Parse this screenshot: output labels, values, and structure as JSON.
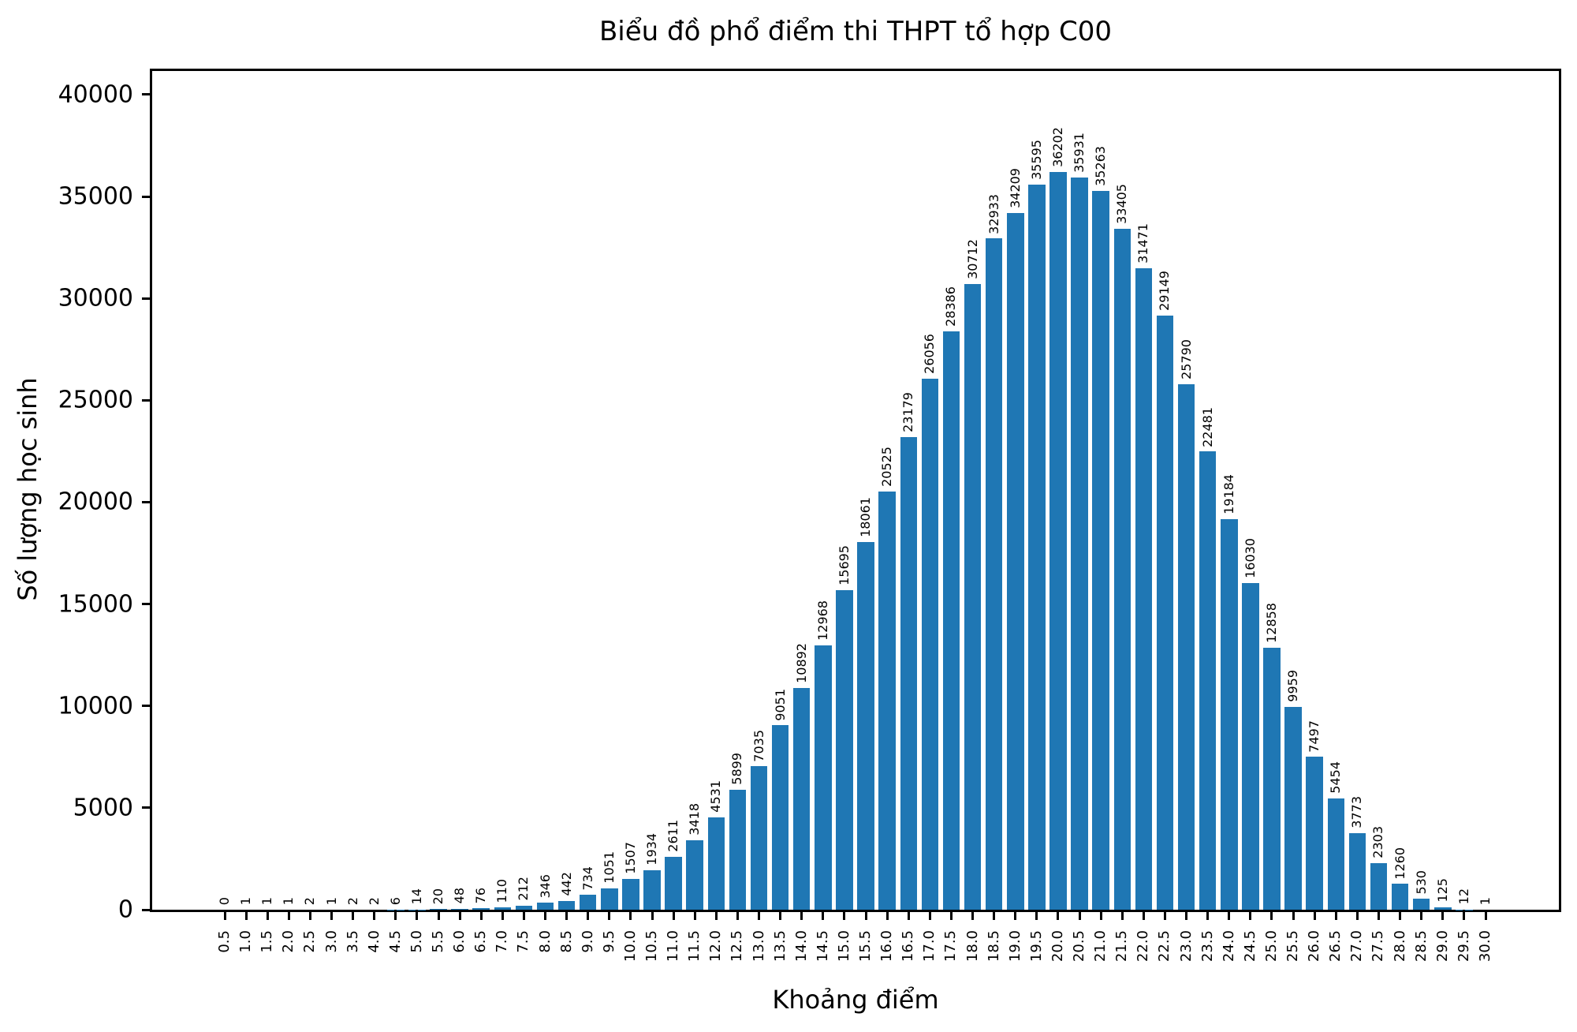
{
  "chart_data": {
    "type": "bar",
    "title": "Biểu đồ phổ điểm thi THPT tổ hợp C00",
    "xlabel": "Khoảng điểm",
    "ylabel": "Số lượng học sinh",
    "categories": [
      "0.5",
      "1.0",
      "1.5",
      "2.0",
      "2.5",
      "3.0",
      "3.5",
      "4.0",
      "4.5",
      "5.0",
      "5.5",
      "6.0",
      "6.5",
      "7.0",
      "7.5",
      "8.0",
      "8.5",
      "9.0",
      "9.5",
      "10.0",
      "10.5",
      "11.0",
      "11.5",
      "12.0",
      "12.5",
      "13.0",
      "13.5",
      "14.0",
      "14.5",
      "15.0",
      "15.5",
      "16.0",
      "16.5",
      "17.0",
      "17.5",
      "18.0",
      "18.5",
      "19.0",
      "19.5",
      "20.0",
      "20.5",
      "21.0",
      "21.5",
      "22.0",
      "22.5",
      "23.0",
      "23.5",
      "24.0",
      "24.5",
      "25.0",
      "25.5",
      "26.0",
      "26.5",
      "27.0",
      "27.5",
      "28.0",
      "28.5",
      "29.0",
      "29.5",
      "30.0"
    ],
    "values": [
      0,
      1,
      1,
      1,
      2,
      1,
      2,
      2,
      6,
      14,
      20,
      48,
      76,
      110,
      212,
      346,
      442,
      734,
      1051,
      1507,
      1934,
      2611,
      3418,
      4531,
      5899,
      7035,
      9051,
      10892,
      12968,
      15695,
      18061,
      20525,
      23179,
      26056,
      28386,
      30712,
      32933,
      34209,
      35595,
      36202,
      35931,
      35263,
      33405,
      31471,
      29149,
      25790,
      22481,
      19184,
      16030,
      12858,
      9959,
      7497,
      5454,
      3773,
      2303,
      1260,
      530,
      125,
      12,
      1
    ],
    "y_ticks": [
      0,
      5000,
      10000,
      15000,
      20000,
      25000,
      30000,
      35000,
      40000
    ],
    "ylim": [
      0,
      41160
    ],
    "bar_color": "#1f77b4",
    "grid": "off",
    "legend": "none",
    "annotations": "each bar labeled with its value, rotated 90° above bar",
    "tick_label_rotation": "90deg bottom-to-top"
  }
}
